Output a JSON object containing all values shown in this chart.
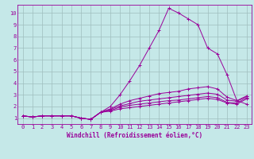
{
  "xlabel": "Windchill (Refroidissement éolien,°C)",
  "bg_color": "#c5e8e8",
  "line_color": "#990099",
  "grid_color": "#9fbebe",
  "xlim": [
    -0.5,
    23.5
  ],
  "ylim": [
    0.5,
    10.7
  ],
  "xticks": [
    0,
    1,
    2,
    3,
    4,
    5,
    6,
    7,
    8,
    9,
    10,
    11,
    12,
    13,
    14,
    15,
    16,
    17,
    18,
    19,
    20,
    21,
    22,
    23
  ],
  "yticks": [
    1,
    2,
    3,
    4,
    5,
    6,
    7,
    8,
    9,
    10
  ],
  "lines": [
    {
      "x": [
        0,
        1,
        2,
        3,
        4,
        5,
        6,
        7,
        8,
        9,
        10,
        11,
        12,
        13,
        14,
        15,
        16,
        17,
        18,
        19,
        20,
        21,
        22,
        23
      ],
      "y": [
        1.2,
        1.1,
        1.2,
        1.2,
        1.2,
        1.2,
        1.0,
        0.9,
        1.5,
        2.0,
        3.0,
        4.2,
        5.5,
        7.0,
        8.5,
        10.4,
        10.0,
        9.5,
        9.0,
        7.0,
        6.5,
        4.7,
        2.5,
        2.2
      ]
    },
    {
      "x": [
        0,
        1,
        2,
        3,
        4,
        5,
        6,
        7,
        8,
        9,
        10,
        11,
        12,
        13,
        14,
        15,
        16,
        17,
        18,
        19,
        20,
        21,
        22,
        23
      ],
      "y": [
        1.2,
        1.1,
        1.2,
        1.2,
        1.2,
        1.2,
        1.0,
        0.9,
        1.5,
        1.8,
        2.2,
        2.5,
        2.7,
        2.9,
        3.1,
        3.2,
        3.3,
        3.5,
        3.6,
        3.7,
        3.5,
        2.8,
        2.5,
        2.9
      ]
    },
    {
      "x": [
        0,
        1,
        2,
        3,
        4,
        5,
        6,
        7,
        8,
        9,
        10,
        11,
        12,
        13,
        14,
        15,
        16,
        17,
        18,
        19,
        20,
        21,
        22,
        23
      ],
      "y": [
        1.2,
        1.1,
        1.2,
        1.2,
        1.2,
        1.2,
        1.0,
        0.9,
        1.5,
        1.75,
        2.05,
        2.25,
        2.45,
        2.55,
        2.65,
        2.75,
        2.85,
        2.95,
        3.05,
        3.15,
        3.05,
        2.55,
        2.45,
        2.85
      ]
    },
    {
      "x": [
        0,
        1,
        2,
        3,
        4,
        5,
        6,
        7,
        8,
        9,
        10,
        11,
        12,
        13,
        14,
        15,
        16,
        17,
        18,
        19,
        20,
        21,
        22,
        23
      ],
      "y": [
        1.2,
        1.1,
        1.2,
        1.2,
        1.2,
        1.2,
        1.0,
        0.9,
        1.5,
        1.65,
        1.95,
        2.1,
        2.2,
        2.3,
        2.4,
        2.5,
        2.55,
        2.65,
        2.75,
        2.85,
        2.75,
        2.35,
        2.3,
        2.75
      ]
    },
    {
      "x": [
        0,
        1,
        2,
        3,
        4,
        5,
        6,
        7,
        8,
        9,
        10,
        11,
        12,
        13,
        14,
        15,
        16,
        17,
        18,
        19,
        20,
        21,
        22,
        23
      ],
      "y": [
        1.2,
        1.1,
        1.2,
        1.2,
        1.2,
        1.2,
        1.0,
        0.9,
        1.5,
        1.6,
        1.8,
        1.9,
        2.0,
        2.1,
        2.2,
        2.3,
        2.4,
        2.5,
        2.6,
        2.7,
        2.6,
        2.3,
        2.2,
        2.65
      ]
    }
  ],
  "tick_fontsize": 5.0,
  "xlabel_fontsize": 5.5,
  "xlabel_fontweight": "bold"
}
